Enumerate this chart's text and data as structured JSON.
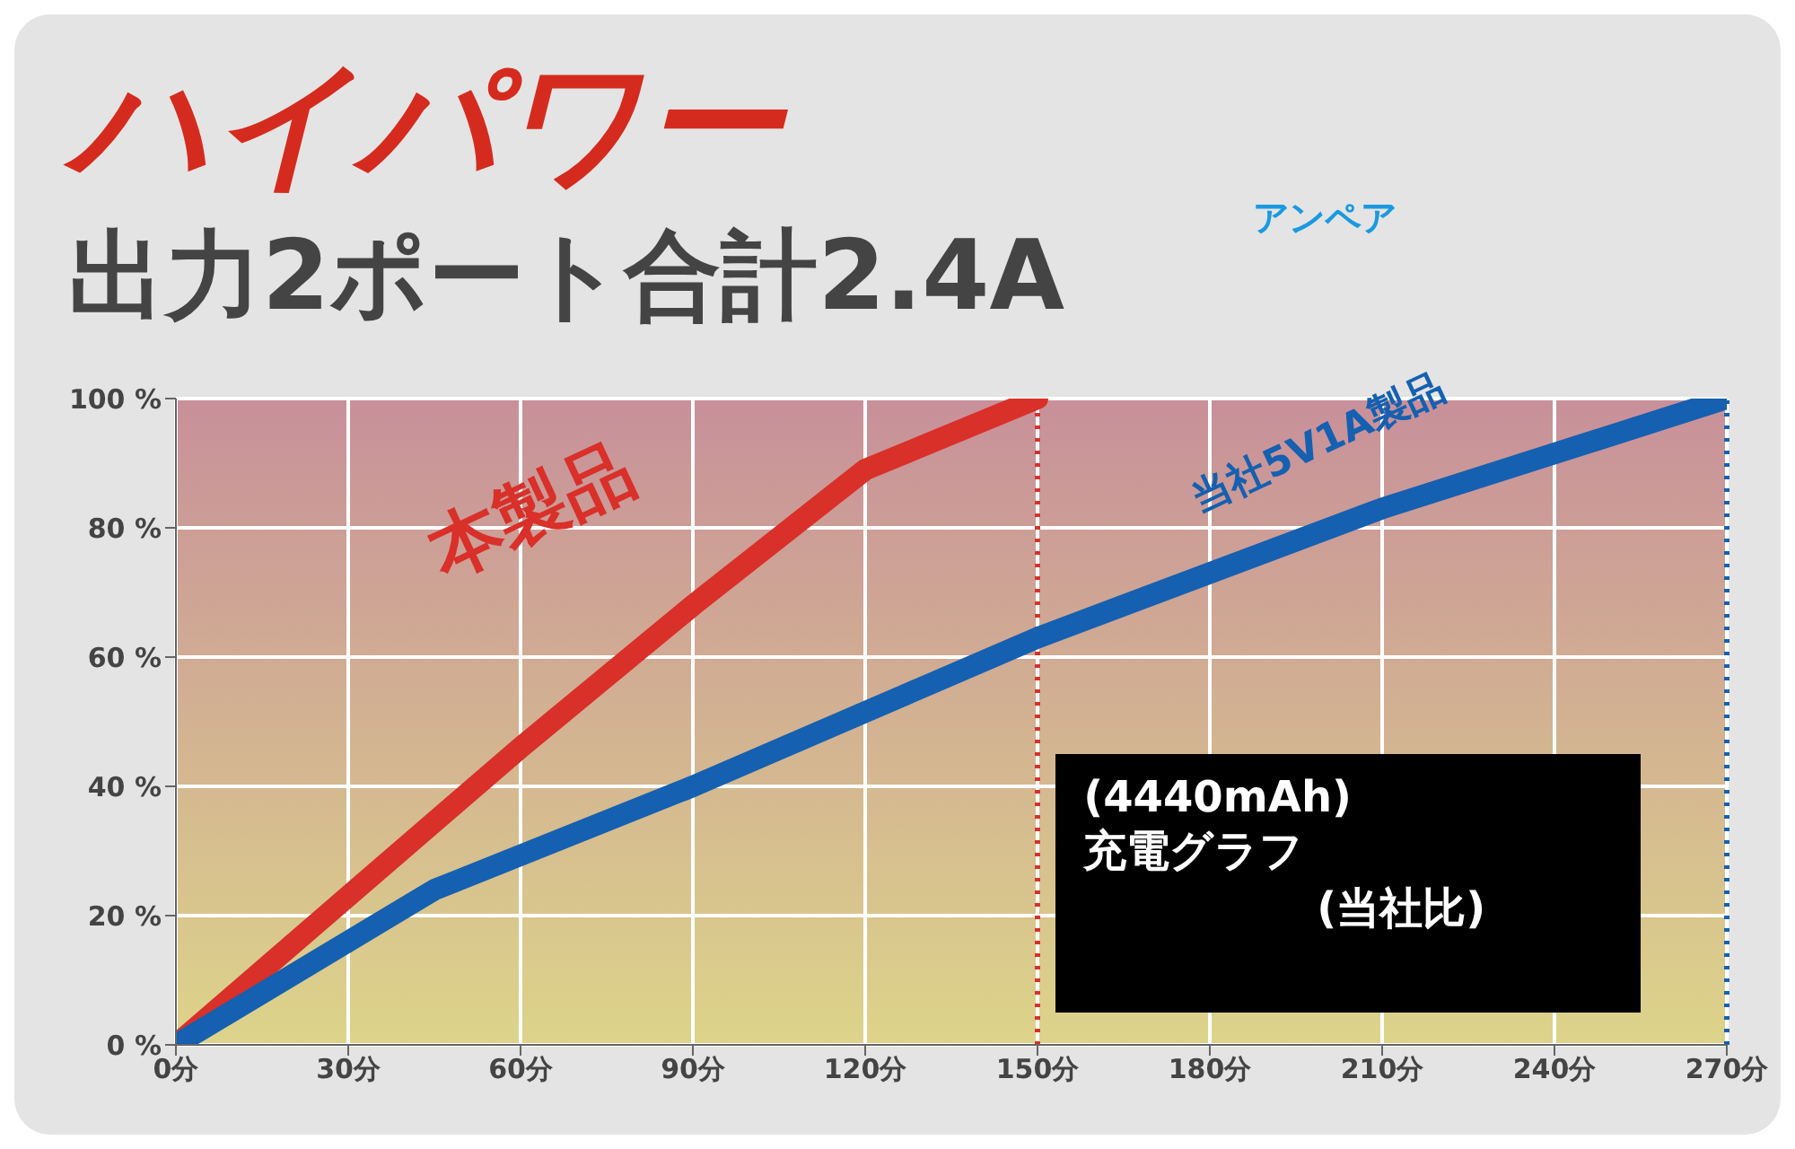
{
  "chart_data": {
    "type": "line",
    "title": "ハイパワー",
    "subtitle": "出力2ポート合計2.4A",
    "annotations": [
      "アンペア",
      "(4440mAh)",
      "充電グラフ",
      "(当社比)"
    ],
    "series": [
      {
        "name": "本製品",
        "color": "#d9302a",
        "x": [
          0,
          30,
          60,
          90,
          120,
          150
        ],
        "values": [
          0,
          23,
          46,
          68,
          89,
          100
        ]
      },
      {
        "name": "当社5V1A製品",
        "color": "#1560b0",
        "x": [
          0,
          45,
          90,
          150,
          210,
          270
        ],
        "values": [
          0,
          24,
          40,
          63,
          83,
          100
        ]
      }
    ],
    "xlim": [
      0,
      270
    ],
    "xticks": [
      {
        "value": 0,
        "label": "0分"
      },
      {
        "value": 30,
        "label": "30分"
      },
      {
        "value": 60,
        "label": "60分"
      },
      {
        "value": 90,
        "label": "90分"
      },
      {
        "value": 120,
        "label": "120分"
      },
      {
        "value": 150,
        "label": "150分"
      },
      {
        "value": 180,
        "label": "180分"
      },
      {
        "value": 210,
        "label": "210分"
      },
      {
        "value": 240,
        "label": "240分"
      },
      {
        "value": 270,
        "label": "270分"
      }
    ],
    "ylim": [
      0,
      100
    ],
    "yticks": [
      {
        "value": 0,
        "label": "0 %"
      },
      {
        "value": 20,
        "label": "20 %"
      },
      {
        "value": 40,
        "label": "40 %"
      },
      {
        "value": 60,
        "label": "60 %"
      },
      {
        "value": 80,
        "label": "80 %"
      },
      {
        "value": 100,
        "label": "100 %"
      }
    ],
    "grid": true,
    "legend": false,
    "ref_lines": [
      {
        "axis": "x",
        "value": 150,
        "color": "#d9302a",
        "line_style": "dotted"
      },
      {
        "axis": "x",
        "value": 270,
        "color": "#1560b0",
        "line_style": "dotted"
      }
    ]
  }
}
